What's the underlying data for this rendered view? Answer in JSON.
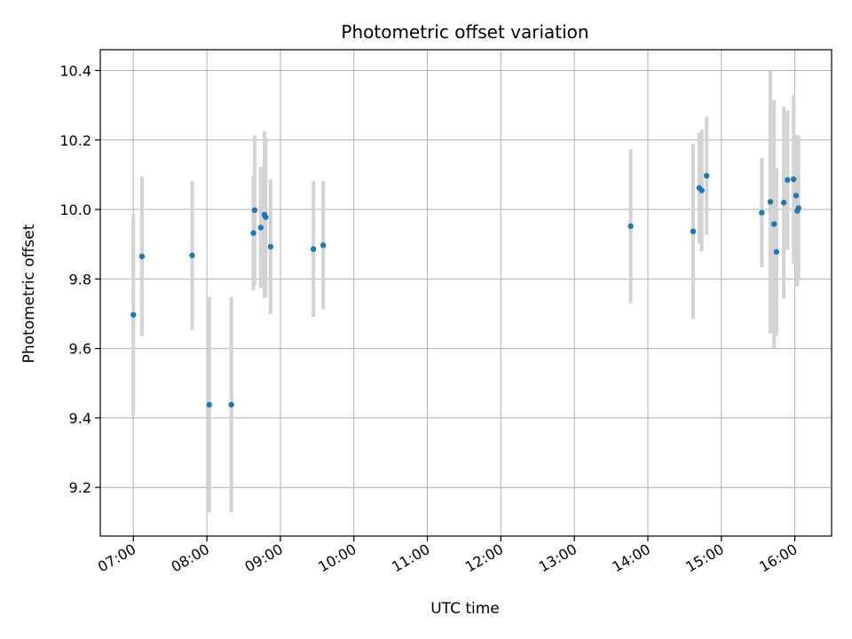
{
  "chart_data": {
    "type": "scatter",
    "title": "Photometric offset variation",
    "xlabel": "UTC time",
    "ylabel": "Photometric offset",
    "xlim": [
      "06:33",
      "16:30"
    ],
    "ylim": [
      9.06,
      10.46
    ],
    "x_ticks": [
      "07:00",
      "08:00",
      "09:00",
      "10:00",
      "11:00",
      "12:00",
      "13:00",
      "14:00",
      "15:00",
      "16:00"
    ],
    "y_ticks": [
      9.2,
      9.4,
      9.6,
      9.8,
      10.0,
      10.2,
      10.4
    ],
    "grid": true,
    "legend": "none",
    "colors": {
      "point": "#1f77b4",
      "errorbar": "#d3d3d3",
      "grid": "#b0b0b0"
    },
    "series": [
      {
        "points": [
          {
            "x": "07:00",
            "y": 9.697,
            "yerr": 0.29
          },
          {
            "x": "07:07",
            "y": 9.865,
            "yerr": 0.23
          },
          {
            "x": "07:48",
            "y": 9.868,
            "yerr": 0.215
          },
          {
            "x": "08:02",
            "y": 9.438,
            "yerr": 0.31
          },
          {
            "x": "08:20",
            "y": 9.438,
            "yerr": 0.31
          },
          {
            "x": "08:38",
            "y": 9.932,
            "yerr": 0.165
          },
          {
            "x": "08:39",
            "y": 9.998,
            "yerr": 0.215
          },
          {
            "x": "08:44",
            "y": 9.948,
            "yerr": 0.175
          },
          {
            "x": "08:47",
            "y": 9.985,
            "yerr": 0.24
          },
          {
            "x": "08:48",
            "y": 9.978,
            "yerr": 0.23
          },
          {
            "x": "08:52",
            "y": 9.893,
            "yerr": 0.195
          },
          {
            "x": "09:27",
            "y": 9.886,
            "yerr": 0.195
          },
          {
            "x": "09:35",
            "y": 9.897,
            "yerr": 0.185
          },
          {
            "x": "13:46",
            "y": 9.952,
            "yerr": 0.222
          },
          {
            "x": "14:37",
            "y": 9.937,
            "yerr": 0.252
          },
          {
            "x": "14:42",
            "y": 10.062,
            "yerr": 0.16
          },
          {
            "x": "14:44",
            "y": 10.055,
            "yerr": 0.175
          },
          {
            "x": "14:48",
            "y": 10.097,
            "yerr": 0.17
          },
          {
            "x": "15:33",
            "y": 9.991,
            "yerr": 0.157
          },
          {
            "x": "15:40",
            "y": 10.022,
            "yerr": 0.378
          },
          {
            "x": "15:43",
            "y": 9.958,
            "yerr": 0.357
          },
          {
            "x": "15:45",
            "y": 9.878,
            "yerr": 0.242
          },
          {
            "x": "15:51",
            "y": 10.02,
            "yerr": 0.276
          },
          {
            "x": "15:54",
            "y": 10.085,
            "yerr": 0.2
          },
          {
            "x": "15:59",
            "y": 10.087,
            "yerr": 0.243
          },
          {
            "x": "16:01",
            "y": 10.04,
            "yerr": 0.175
          },
          {
            "x": "16:02",
            "y": 9.996,
            "yerr": 0.218
          },
          {
            "x": "16:03",
            "y": 10.004,
            "yerr": 0.208
          }
        ]
      }
    ]
  }
}
